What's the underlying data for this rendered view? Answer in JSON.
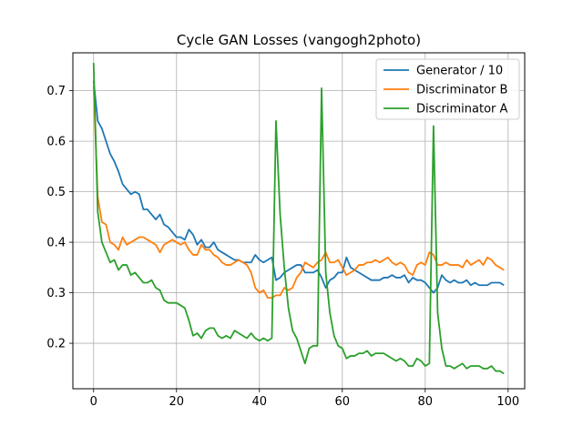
{
  "chart_data": {
    "type": "line",
    "title": "Cycle GAN Losses (vangogh2photo)",
    "xlabel": "",
    "ylabel": "",
    "xlim": [
      -5,
      104
    ],
    "ylim": [
      0.11,
      0.775
    ],
    "xticks": [
      0,
      20,
      40,
      60,
      80,
      100
    ],
    "yticks": [
      0.2,
      0.3,
      0.4,
      0.5,
      0.6,
      0.7
    ],
    "grid": true,
    "legend_position": "top-right",
    "series": [
      {
        "name": "Generator / 10",
        "color": "#1f77b4",
        "values": [
          0.72,
          0.64,
          0.625,
          0.6,
          0.575,
          0.56,
          0.54,
          0.515,
          0.505,
          0.495,
          0.5,
          0.495,
          0.465,
          0.465,
          0.455,
          0.445,
          0.455,
          0.435,
          0.43,
          0.42,
          0.41,
          0.41,
          0.405,
          0.425,
          0.415,
          0.395,
          0.405,
          0.39,
          0.39,
          0.4,
          0.385,
          0.38,
          0.375,
          0.37,
          0.365,
          0.365,
          0.36,
          0.36,
          0.36,
          0.375,
          0.365,
          0.36,
          0.365,
          0.37,
          0.325,
          0.33,
          0.34,
          0.345,
          0.35,
          0.355,
          0.355,
          0.34,
          0.34,
          0.34,
          0.345,
          0.33,
          0.31,
          0.325,
          0.33,
          0.34,
          0.34,
          0.37,
          0.35,
          0.345,
          0.34,
          0.335,
          0.33,
          0.325,
          0.325,
          0.325,
          0.33,
          0.33,
          0.335,
          0.33,
          0.33,
          0.335,
          0.32,
          0.33,
          0.325,
          0.325,
          0.32,
          0.31,
          0.3,
          0.31,
          0.335,
          0.325,
          0.32,
          0.325,
          0.32,
          0.32,
          0.325,
          0.315,
          0.32,
          0.315,
          0.315,
          0.315,
          0.32,
          0.32,
          0.32,
          0.315
        ]
      },
      {
        "name": "Discriminator B",
        "color": "#ff7f0e",
        "values": [
          0.71,
          0.49,
          0.44,
          0.435,
          0.4,
          0.395,
          0.385,
          0.41,
          0.395,
          0.4,
          0.405,
          0.41,
          0.41,
          0.405,
          0.4,
          0.395,
          0.38,
          0.395,
          0.4,
          0.405,
          0.4,
          0.395,
          0.4,
          0.385,
          0.375,
          0.375,
          0.395,
          0.385,
          0.385,
          0.375,
          0.37,
          0.36,
          0.355,
          0.355,
          0.36,
          0.365,
          0.36,
          0.355,
          0.34,
          0.31,
          0.3,
          0.305,
          0.29,
          0.29,
          0.295,
          0.295,
          0.31,
          0.305,
          0.31,
          0.33,
          0.34,
          0.36,
          0.355,
          0.35,
          0.36,
          0.365,
          0.38,
          0.36,
          0.36,
          0.365,
          0.35,
          0.335,
          0.34,
          0.345,
          0.355,
          0.355,
          0.36,
          0.36,
          0.365,
          0.36,
          0.365,
          0.37,
          0.36,
          0.355,
          0.36,
          0.355,
          0.34,
          0.335,
          0.355,
          0.36,
          0.355,
          0.38,
          0.375,
          0.355,
          0.355,
          0.36,
          0.355,
          0.355,
          0.355,
          0.35,
          0.365,
          0.355,
          0.36,
          0.365,
          0.355,
          0.37,
          0.365,
          0.355,
          0.35,
          0.345
        ]
      },
      {
        "name": "Discriminator A",
        "color": "#2ca02c",
        "values": [
          0.755,
          0.46,
          0.4,
          0.38,
          0.36,
          0.365,
          0.345,
          0.355,
          0.355,
          0.335,
          0.34,
          0.33,
          0.32,
          0.32,
          0.325,
          0.31,
          0.305,
          0.285,
          0.28,
          0.28,
          0.28,
          0.275,
          0.27,
          0.245,
          0.215,
          0.22,
          0.21,
          0.225,
          0.23,
          0.23,
          0.215,
          0.21,
          0.215,
          0.21,
          0.225,
          0.22,
          0.215,
          0.21,
          0.22,
          0.21,
          0.205,
          0.21,
          0.205,
          0.21,
          0.64,
          0.455,
          0.35,
          0.27,
          0.225,
          0.21,
          0.185,
          0.16,
          0.19,
          0.195,
          0.195,
          0.705,
          0.34,
          0.26,
          0.215,
          0.195,
          0.19,
          0.17,
          0.175,
          0.175,
          0.18,
          0.18,
          0.185,
          0.175,
          0.18,
          0.18,
          0.18,
          0.175,
          0.17,
          0.165,
          0.17,
          0.165,
          0.155,
          0.155,
          0.17,
          0.165,
          0.155,
          0.16,
          0.63,
          0.26,
          0.19,
          0.155,
          0.155,
          0.15,
          0.155,
          0.16,
          0.15,
          0.155,
          0.155,
          0.155,
          0.15,
          0.15,
          0.155,
          0.145,
          0.145,
          0.14
        ]
      }
    ]
  }
}
